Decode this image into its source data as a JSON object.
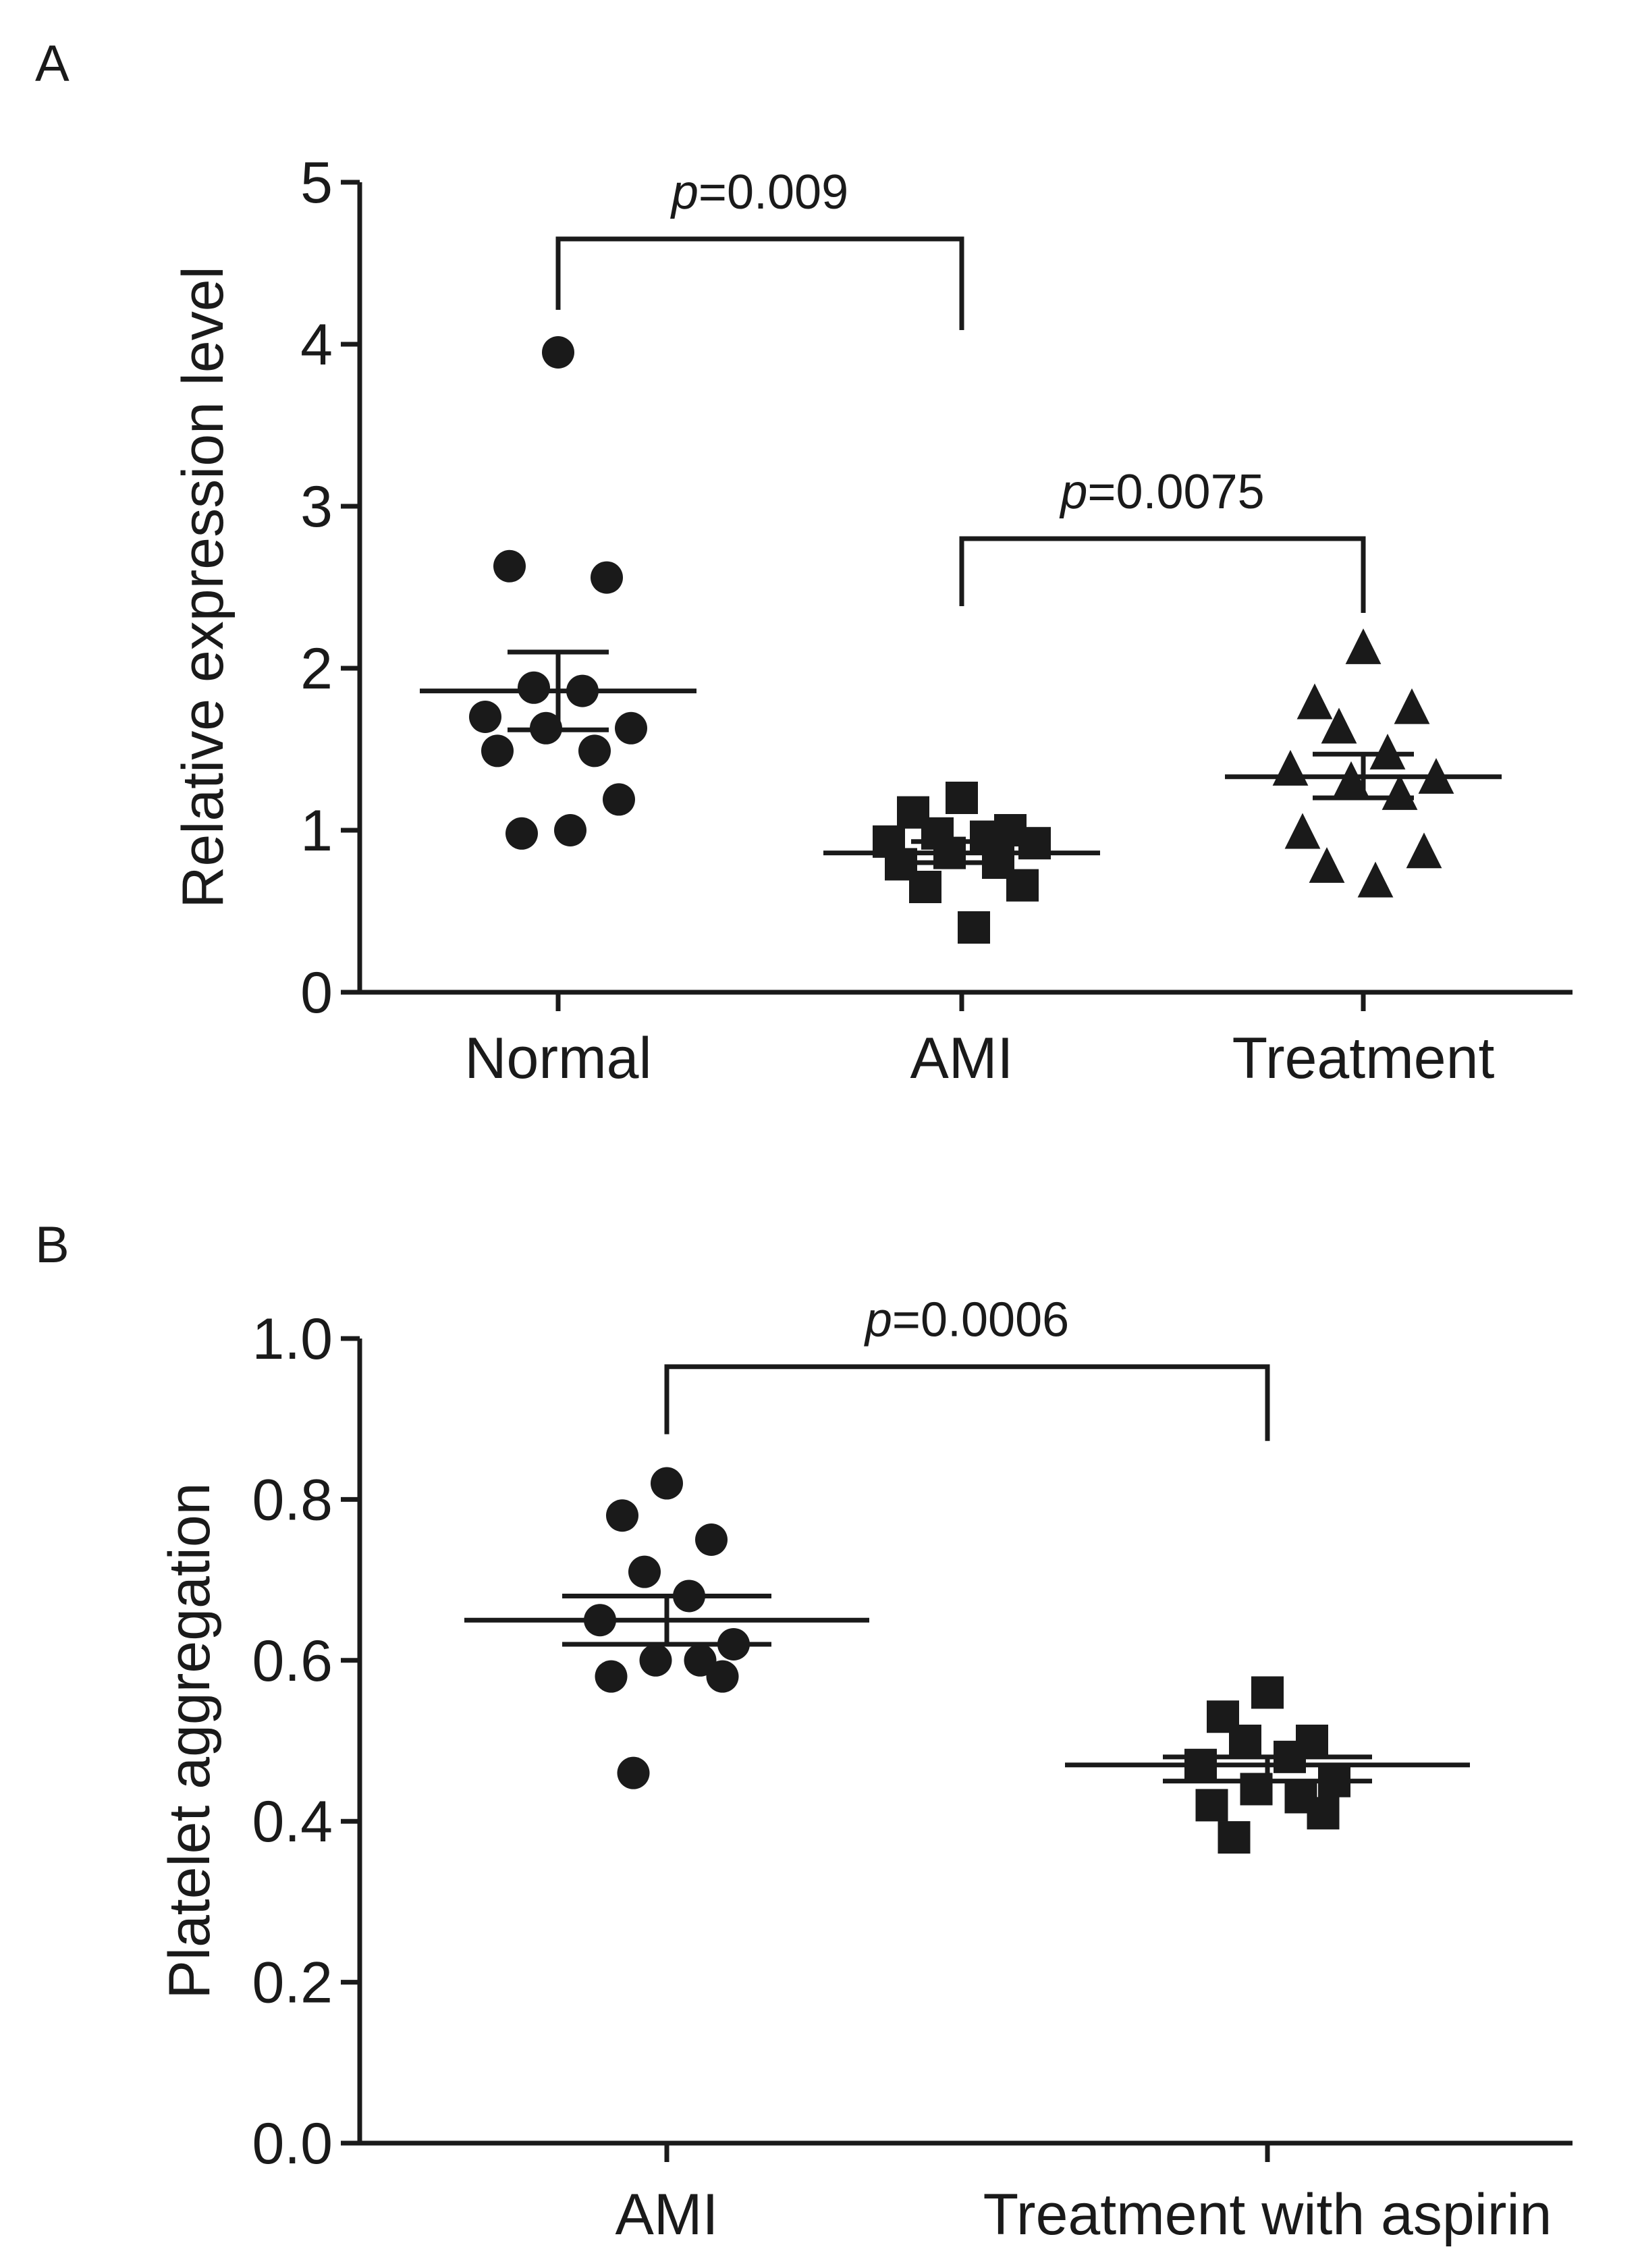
{
  "chart_data": [
    {
      "panel": "A",
      "type": "scatter",
      "title": "",
      "xlabel": "",
      "ylabel": "Relative expression level",
      "ylim": [
        0,
        5
      ],
      "yticks": [
        "0",
        "1",
        "2",
        "3",
        "4",
        "5"
      ],
      "categories": [
        "Normal",
        "AMI",
        "Treatment"
      ],
      "grid": false,
      "series": [
        {
          "category": "Normal",
          "marker": "circle",
          "values": [
            3.95,
            2.63,
            2.56,
            1.88,
            1.86,
            1.7,
            1.63,
            1.63,
            1.49,
            1.49,
            1.19,
            0.98,
            1.0
          ],
          "mean": 1.86,
          "sem": [
            1.62,
            2.1
          ]
        },
        {
          "category": "AMI",
          "marker": "square",
          "values": [
            1.2,
            1.11,
            1.0,
            0.98,
            0.96,
            0.93,
            0.92,
            0.86,
            0.8,
            0.79,
            0.66,
            0.65,
            0.4
          ],
          "mean": 0.86,
          "sem": [
            0.8,
            0.93
          ]
        },
        {
          "category": "Treatment",
          "marker": "triangle",
          "values": [
            2.12,
            1.78,
            1.75,
            1.63,
            1.47,
            1.37,
            1.32,
            1.3,
            1.22,
            0.98,
            0.86,
            0.77,
            0.68
          ],
          "mean": 1.33,
          "sem": [
            1.2,
            1.47
          ]
        }
      ],
      "annotations": [
        {
          "type": "bracket",
          "from": "Normal",
          "to": "AMI",
          "y": 4.65,
          "label_italic": "p",
          "label_rest": "=0.009"
        },
        {
          "type": "bracket",
          "from": "AMI",
          "to": "Treatment",
          "y": 2.8,
          "label_italic": "p",
          "label_rest": "=0.0075"
        }
      ]
    },
    {
      "panel": "B",
      "type": "scatter",
      "title": "",
      "xlabel": "",
      "ylabel": "Platelet aggregation",
      "ylim": [
        0,
        1
      ],
      "yticks": [
        "0.0",
        "0.2",
        "0.4",
        "0.6",
        "0.8",
        "1.0"
      ],
      "categories": [
        "AMI",
        "Treatment with aspirin"
      ],
      "grid": false,
      "series": [
        {
          "category": "AMI",
          "marker": "circle",
          "values": [
            0.82,
            0.78,
            0.75,
            0.71,
            0.68,
            0.65,
            0.62,
            0.6,
            0.6,
            0.58,
            0.58,
            0.46
          ],
          "mean": 0.65,
          "sem": [
            0.62,
            0.68
          ]
        },
        {
          "category": "Treatment with aspirin",
          "marker": "square",
          "values": [
            0.56,
            0.53,
            0.5,
            0.5,
            0.48,
            0.47,
            0.45,
            0.44,
            0.43,
            0.42,
            0.41,
            0.38
          ],
          "mean": 0.47,
          "sem": [
            0.45,
            0.48
          ]
        }
      ],
      "annotations": [
        {
          "type": "bracket",
          "from": "AMI",
          "to": "Treatment with aspirin",
          "y": 0.965,
          "label_italic": "p",
          "label_rest": "=0.0006"
        }
      ]
    }
  ]
}
